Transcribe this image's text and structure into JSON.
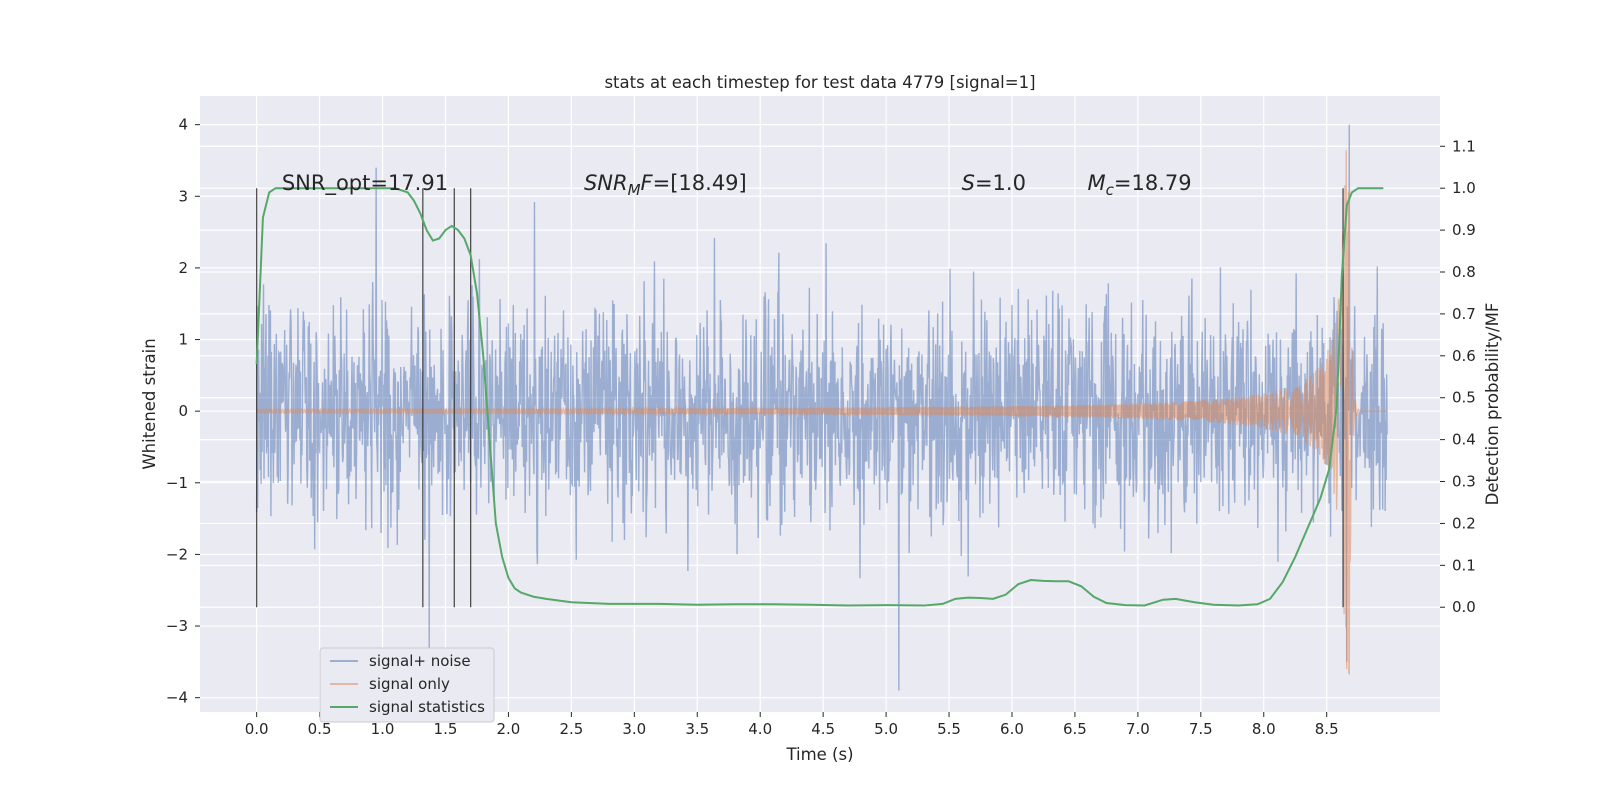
{
  "chart_data": {
    "type": "line",
    "title": "stats at each timestep for test data 4779 [signal=1]",
    "xlabel": "Time (s)",
    "ylabel": "Whitened strain",
    "ylabel_right": "Detection probability/MF",
    "xlim": [
      -0.45,
      9.4
    ],
    "ylim": [
      -4.2,
      4.4
    ],
    "ylim_right": [
      -0.25,
      1.22
    ],
    "x_ticks": [
      "0.0",
      "0.5",
      "1.0",
      "1.5",
      "2.0",
      "2.5",
      "3.0",
      "3.5",
      "4.0",
      "4.5",
      "5.0",
      "5.5",
      "6.0",
      "6.5",
      "7.0",
      "7.5",
      "8.0",
      "8.5"
    ],
    "y_ticks": [
      "4",
      "3",
      "2",
      "1",
      "0",
      "−1",
      "−2",
      "−3",
      "−4"
    ],
    "y_ticks_right": [
      "1.1",
      "1.0",
      "0.9",
      "0.8",
      "0.7",
      "0.6",
      "0.5",
      "0.4",
      "0.3",
      "0.2",
      "0.1",
      "0.0"
    ],
    "annotations": [
      {
        "text": "SNR_opt=17.91",
        "x": 0.2,
        "y": 3.2
      },
      {
        "text": "SNRMF=[18.49]",
        "x": 2.6,
        "y": 3.2,
        "mathtext": true,
        "base": "SNR",
        "sub": "M",
        "rest": "F=[18.49]"
      },
      {
        "text": "S=1.0",
        "x": 5.6,
        "y": 3.2,
        "mathtext": true,
        "base": "S",
        "sub": "",
        "rest": "=1.0"
      },
      {
        "text": "Mc=18.79",
        "x": 6.6,
        "y": 3.2,
        "mathtext": true,
        "base": "M",
        "sub": "c",
        "rest": "=18.79"
      }
    ],
    "vlines": [
      0.0,
      1.32,
      1.57,
      1.7,
      8.63
    ],
    "vline_range_right": [
      0.0,
      1.0
    ],
    "noise": {
      "t_start": 0.0,
      "t_end": 8.98,
      "samples": 2300,
      "sigma": 0.75,
      "clip": 3.55,
      "seed": 4779,
      "spikes": [
        {
          "t": 8.68,
          "v": 4.0
        },
        {
          "t": 8.66,
          "v": -3.5
        },
        {
          "t": 5.1,
          "v": -3.9
        },
        {
          "t": 1.37,
          "v": -3.35
        },
        {
          "t": 0.95,
          "v": 3.4
        }
      ]
    },
    "chirp": {
      "t_end": 8.68,
      "ringdown_end": 8.98,
      "peak": 3.7
    },
    "series": [
      {
        "name": "signal+ noise",
        "color": "#4c72b0",
        "alpha": 0.5,
        "axis": "left"
      },
      {
        "name": "signal only",
        "color": "#dd8452",
        "alpha": 0.5,
        "axis": "left"
      },
      {
        "name": "signal statistics",
        "color": "#55a868",
        "alpha": 1.0,
        "axis": "right",
        "x": [
          0.0,
          0.05,
          0.1,
          0.15,
          0.25,
          0.4,
          0.6,
          0.8,
          1.0,
          1.1,
          1.2,
          1.25,
          1.3,
          1.35,
          1.4,
          1.45,
          1.5,
          1.55,
          1.6,
          1.65,
          1.7,
          1.75,
          1.8,
          1.85,
          1.9,
          1.95,
          2.0,
          2.05,
          2.1,
          2.15,
          2.2,
          2.3,
          2.5,
          2.8,
          3.2,
          3.5,
          3.8,
          4.1,
          4.4,
          4.7,
          5.0,
          5.3,
          5.45,
          5.55,
          5.65,
          5.75,
          5.85,
          5.95,
          6.05,
          6.15,
          6.25,
          6.35,
          6.45,
          6.55,
          6.65,
          6.75,
          6.9,
          7.05,
          7.2,
          7.3,
          7.45,
          7.6,
          7.8,
          7.95,
          8.05,
          8.15,
          8.25,
          8.35,
          8.45,
          8.52,
          8.58,
          8.62,
          8.66,
          8.7,
          8.75,
          8.8,
          8.85,
          8.9,
          8.95
        ],
        "values": [
          0.58,
          0.93,
          0.99,
          1.0,
          1.0,
          1.0,
          1.0,
          1.0,
          1.0,
          1.0,
          0.99,
          0.97,
          0.94,
          0.9,
          0.875,
          0.88,
          0.9,
          0.91,
          0.9,
          0.88,
          0.84,
          0.75,
          0.6,
          0.4,
          0.2,
          0.12,
          0.07,
          0.045,
          0.035,
          0.03,
          0.025,
          0.02,
          0.012,
          0.008,
          0.008,
          0.006,
          0.007,
          0.007,
          0.006,
          0.004,
          0.005,
          0.004,
          0.008,
          0.02,
          0.023,
          0.022,
          0.02,
          0.03,
          0.055,
          0.065,
          0.063,
          0.062,
          0.062,
          0.05,
          0.025,
          0.01,
          0.005,
          0.004,
          0.018,
          0.02,
          0.012,
          0.006,
          0.004,
          0.007,
          0.02,
          0.06,
          0.12,
          0.19,
          0.26,
          0.33,
          0.48,
          0.79,
          0.96,
          0.99,
          1.0,
          1.0,
          1.0,
          1.0,
          1.0
        ]
      }
    ]
  }
}
